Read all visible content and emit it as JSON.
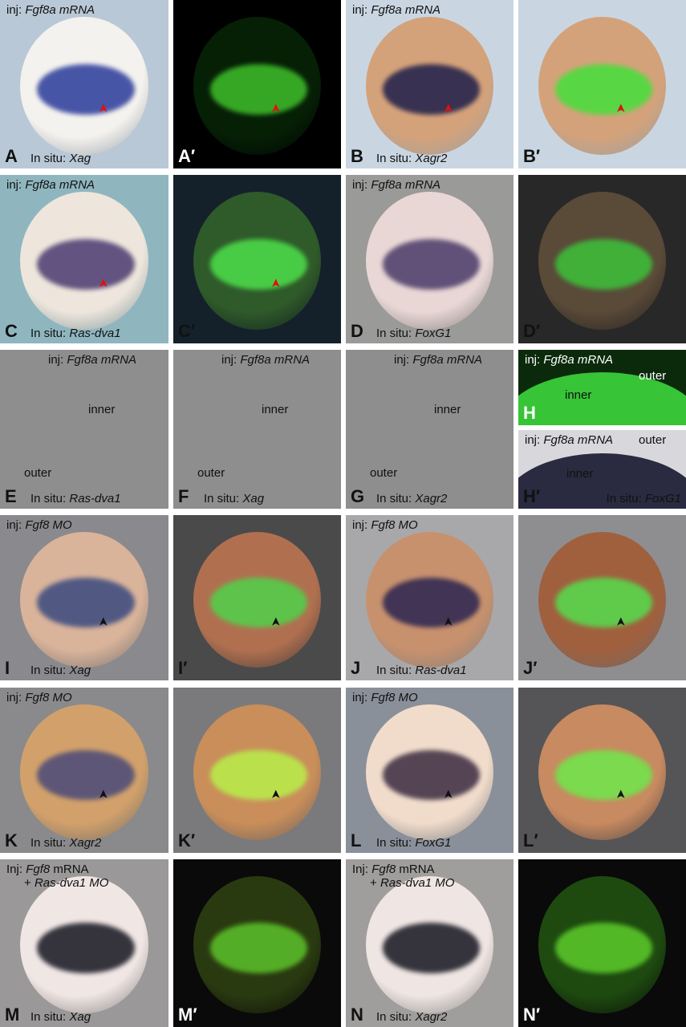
{
  "panels": [
    {
      "letter": "A",
      "inj": {
        "prefix": "inj: ",
        "gene": "Fgf8a mRNA"
      },
      "insitu": {
        "prefix": "In situ: ",
        "gene": "Xag"
      },
      "arrowheads": "red"
    },
    {
      "letter": "A′",
      "arrowheads": "red"
    },
    {
      "letter": "B",
      "inj": {
        "prefix": "inj: ",
        "gene": "Fgf8a mRNA"
      },
      "insitu": {
        "prefix": "In situ: ",
        "gene": "Xagr2"
      },
      "arrowheads": "red"
    },
    {
      "letter": "B′",
      "arrowheads": "red"
    },
    {
      "letter": "C",
      "inj": {
        "prefix": "inj: ",
        "gene": "Fgf8a mRNA"
      },
      "insitu": {
        "prefix": "In situ: ",
        "gene": "Ras-dva1"
      },
      "arrowheads": "red"
    },
    {
      "letter": "C′",
      "arrowheads": "red"
    },
    {
      "letter": "D",
      "inj": {
        "prefix": "inj: ",
        "gene": "Fgf8a mRNA"
      },
      "insitu": {
        "prefix": "In situ: ",
        "gene": "FoxG1"
      }
    },
    {
      "letter": "D′"
    },
    {
      "letter": "E",
      "inj": {
        "prefix": "inj: ",
        "gene": "Fgf8a mRNA"
      },
      "insitu": {
        "prefix": "In situ: ",
        "gene": "Ras-dva1"
      },
      "labels": [
        "inner",
        "outer"
      ]
    },
    {
      "letter": "F",
      "inj": {
        "prefix": "inj: ",
        "gene": "Fgf8a mRNA"
      },
      "insitu": {
        "prefix": "In situ: ",
        "gene": "Xag"
      },
      "labels": [
        "inner",
        "outer"
      ]
    },
    {
      "letter": "G",
      "inj": {
        "prefix": "inj: ",
        "gene": "Fgf8a mRNA"
      },
      "insitu": {
        "prefix": "In situ: ",
        "gene": "Xagr2"
      },
      "labels": [
        "inner",
        "outer"
      ]
    },
    {
      "letter": "H",
      "inj": {
        "prefix": "inj: ",
        "gene": "Fgf8a mRNA"
      },
      "labels": [
        "inner",
        "outer"
      ]
    },
    {
      "letter": "H′",
      "inj": {
        "prefix": "inj: ",
        "gene": "Fgf8a mRNA"
      },
      "insitu": {
        "prefix": "In situ: ",
        "gene": "FoxG1"
      },
      "labels": [
        "inner",
        "outer"
      ]
    },
    {
      "letter": "I",
      "inj": {
        "prefix": "inj: ",
        "gene": "Fgf8 MO"
      },
      "insitu": {
        "prefix": "In situ: ",
        "gene": "Xag"
      },
      "arrowheads": "black"
    },
    {
      "letter": "I′",
      "arrowheads": "black"
    },
    {
      "letter": "J",
      "inj": {
        "prefix": "inj: ",
        "gene": "Fgf8 MO"
      },
      "insitu": {
        "prefix": "In situ: ",
        "gene": "Ras-dva1"
      },
      "arrowheads": "black"
    },
    {
      "letter": "J′",
      "arrowheads": "black"
    },
    {
      "letter": "K",
      "inj": {
        "prefix": "inj: ",
        "gene": "Fgf8 MO"
      },
      "insitu": {
        "prefix": "In situ: ",
        "gene": "Xagr2"
      },
      "arrowheads": "black"
    },
    {
      "letter": "K′",
      "arrowheads": "black"
    },
    {
      "letter": "L",
      "inj": {
        "prefix": "inj: ",
        "gene": "Fgf8 MO"
      },
      "insitu": {
        "prefix": "In situ: ",
        "gene": "FoxG1"
      },
      "arrowheads": "black"
    },
    {
      "letter": "L′",
      "arrowheads": "black"
    },
    {
      "letter": "M",
      "inj": {
        "prefix": "Inj: ",
        "gene": "Fgf8",
        "suffix": " mRNA",
        "line2_prefix": "+ ",
        "line2_gene": "Ras-dva1 MO"
      },
      "insitu": {
        "prefix": "In situ: ",
        "gene": "Xag"
      }
    },
    {
      "letter": "M′"
    },
    {
      "letter": "N",
      "inj": {
        "prefix": "Inj: ",
        "gene": "Fgf8",
        "suffix": " mRNA",
        "line2_prefix": "+ ",
        "line2_gene": "Ras-dva1 MO"
      },
      "insitu": {
        "prefix": "In situ: ",
        "gene": "Xagr2"
      }
    },
    {
      "letter": "N′"
    }
  ]
}
